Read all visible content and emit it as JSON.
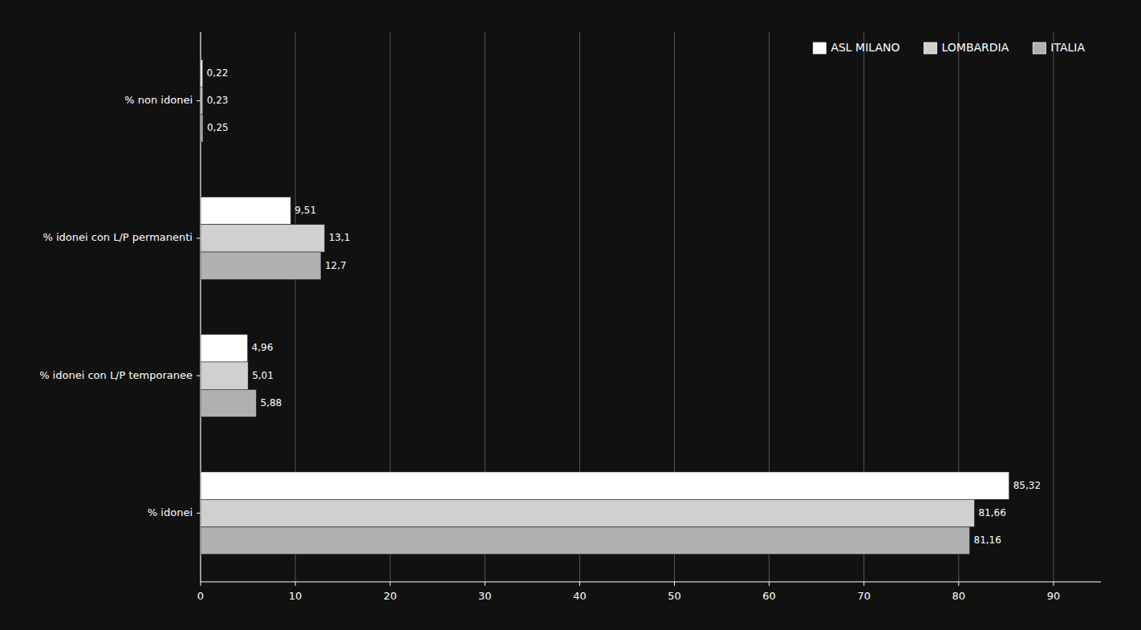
{
  "chart_data": {
    "type": "bar",
    "orientation": "horizontal",
    "categories": [
      "% idonei",
      "% idonei con L/P temporanee",
      "% idonei con L/P permanenti",
      "% non idonei"
    ],
    "series": [
      {
        "name": "ASL MILANO",
        "color": "#ffffff",
        "values": [
          85.32,
          4.96,
          9.51,
          0.22
        ],
        "value_labels": [
          "85,32",
          "4,96",
          "9,51",
          "0,22"
        ]
      },
      {
        "name": "LOMBARDIA",
        "color": "#d0d0d0",
        "values": [
          81.66,
          5.01,
          13.1,
          0.23
        ],
        "value_labels": [
          "81,66",
          "5,01",
          "13,1",
          "0,23"
        ]
      },
      {
        "name": "ITALIA",
        "color": "#b0b0b0",
        "values": [
          81.16,
          5.88,
          12.7,
          0.25
        ],
        "value_labels": [
          "81,16",
          "5,88",
          "12,7",
          "0,25"
        ]
      }
    ],
    "xlim": [
      0,
      95
    ],
    "xticks": [
      0,
      10,
      20,
      30,
      40,
      50,
      60,
      70,
      80,
      90
    ],
    "grid": true,
    "legend": "upper right",
    "data_labels": true
  }
}
